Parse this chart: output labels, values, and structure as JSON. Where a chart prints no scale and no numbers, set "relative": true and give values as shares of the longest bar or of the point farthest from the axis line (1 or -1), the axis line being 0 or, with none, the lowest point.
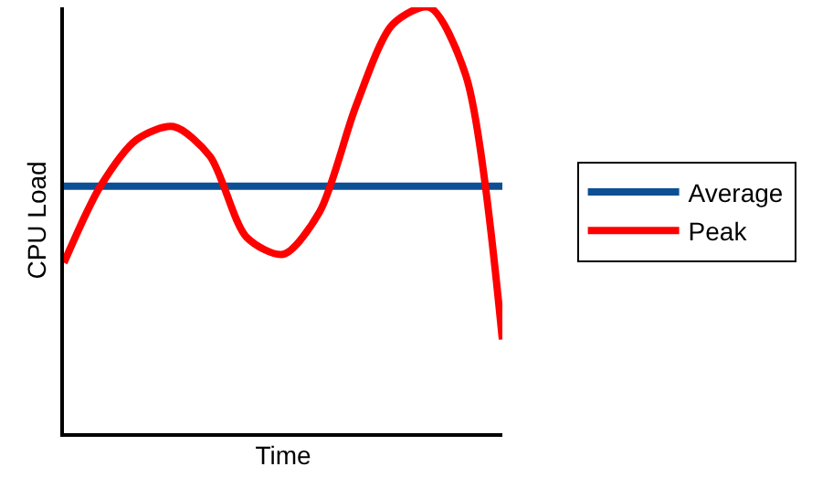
{
  "chart_data": {
    "type": "line",
    "relative": true,
    "xlabel": "Time",
    "ylabel": "CPU Load",
    "legend": "right",
    "categories": [
      null,
      null,
      null,
      null,
      null,
      null,
      null,
      null,
      null,
      null,
      null,
      null,
      null
    ],
    "series": [
      {
        "name": "Average",
        "color": "#0d4f94",
        "values": [
          0.58,
          0.58,
          0.58,
          0.58,
          0.58,
          0.58,
          0.58,
          0.58,
          0.58,
          0.58,
          0.58,
          0.58,
          0.58
        ]
      },
      {
        "name": "Peak",
        "color": "#ff0000",
        "values": [
          0.4,
          0.58,
          0.69,
          0.72,
          0.65,
          0.46,
          0.42,
          0.52,
          0.77,
          0.96,
          1.0,
          0.84,
          0.22
        ]
      }
    ]
  }
}
